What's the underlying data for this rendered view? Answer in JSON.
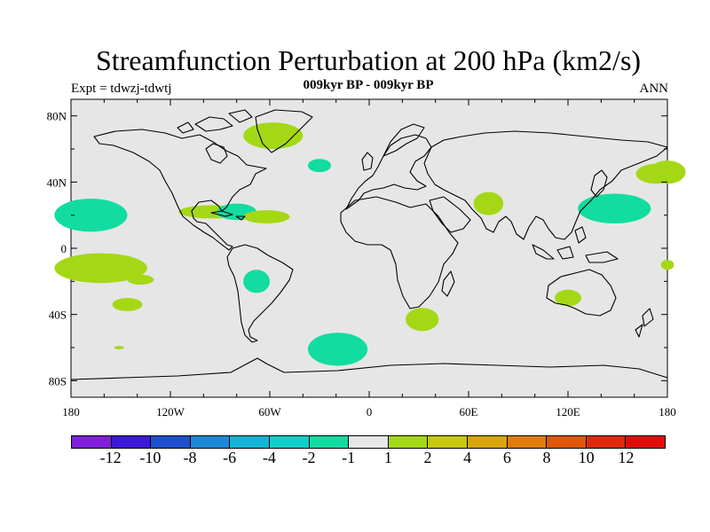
{
  "title": "Streamfunction Perturbation at 200 hPa (km2/s)",
  "subtitle": "009kyr BP - 009kyr BP",
  "experiment": "Expt = tdwzj-tdwtj",
  "season": "ANN",
  "axes": {
    "x_ticks": [
      "180",
      "120W",
      "60W",
      "0",
      "60E",
      "120E",
      "180"
    ],
    "y_ticks": [
      "80N",
      "40N",
      "0",
      "40S",
      "80S"
    ]
  },
  "colorbar": {
    "colors": [
      "#7f1fdc",
      "#3b1ad8",
      "#1d4fd0",
      "#1a8ad6",
      "#14b4d4",
      "#10cfc8",
      "#12dca0",
      "#e6e6e6",
      "#a4d816",
      "#c8c810",
      "#d8a60a",
      "#e07c0a",
      "#e0560a",
      "#e0280c",
      "#e00c0c"
    ],
    "labels": [
      "-12",
      "-10",
      "-8",
      "-6",
      "-4",
      "-2",
      "-1",
      "1",
      "2",
      "4",
      "6",
      "8",
      "10",
      "12"
    ]
  },
  "palette": {
    "ocean_land_background": "#e6e6e6",
    "negative_fill": "#12dca0",
    "positive_fill": "#a4d816"
  },
  "anomalies": [
    {
      "type": "positive",
      "lon": 180,
      "lat": 46,
      "rlon": 11,
      "rlat": 7
    },
    {
      "type": "negative",
      "lon": -168,
      "lat": 20,
      "rlon": 22,
      "rlat": 10
    },
    {
      "type": "positive",
      "lon": -162,
      "lat": -12,
      "rlon": 28,
      "rlat": 9
    },
    {
      "type": "positive",
      "lon": -138,
      "lat": -19,
      "rlon": 8,
      "rlat": 3
    },
    {
      "type": "positive",
      "lon": -146,
      "lat": -34,
      "rlon": 9,
      "rlat": 4
    },
    {
      "type": "positive",
      "lon": -151,
      "lat": -60,
      "rlon": 3,
      "rlat": 1
    },
    {
      "type": "positive",
      "lon": -95,
      "lat": 22,
      "rlon": 20,
      "rlat": 4
    },
    {
      "type": "negative",
      "lon": -80,
      "lat": 22,
      "rlon": 12,
      "rlat": 5
    },
    {
      "type": "positive",
      "lon": -62,
      "lat": 19,
      "rlon": 14,
      "rlat": 4
    },
    {
      "type": "negative",
      "lon": -68,
      "lat": -20,
      "rlon": 8,
      "rlat": 7
    },
    {
      "type": "positive",
      "lon": -58,
      "lat": 68,
      "rlon": 18,
      "rlat": 8
    },
    {
      "type": "negative",
      "lon": -30,
      "lat": 50,
      "rlon": 7,
      "rlat": 4
    },
    {
      "type": "negative",
      "lon": -19,
      "lat": -61,
      "rlon": 18,
      "rlat": 10
    },
    {
      "type": "positive",
      "lon": 32,
      "lat": -43,
      "rlon": 10,
      "rlat": 7
    },
    {
      "type": "positive",
      "lon": 72,
      "lat": 27,
      "rlon": 9,
      "rlat": 7
    },
    {
      "type": "negative",
      "lon": 148,
      "lat": 24,
      "rlon": 22,
      "rlat": 9
    },
    {
      "type": "positive",
      "lon": 173,
      "lat": 45,
      "rlon": 12,
      "rlat": 6
    },
    {
      "type": "positive",
      "lon": 120,
      "lat": -30,
      "rlon": 8,
      "rlat": 5
    },
    {
      "type": "positive",
      "lon": 180,
      "lat": -10,
      "rlon": 4,
      "rlat": 3
    }
  ]
}
